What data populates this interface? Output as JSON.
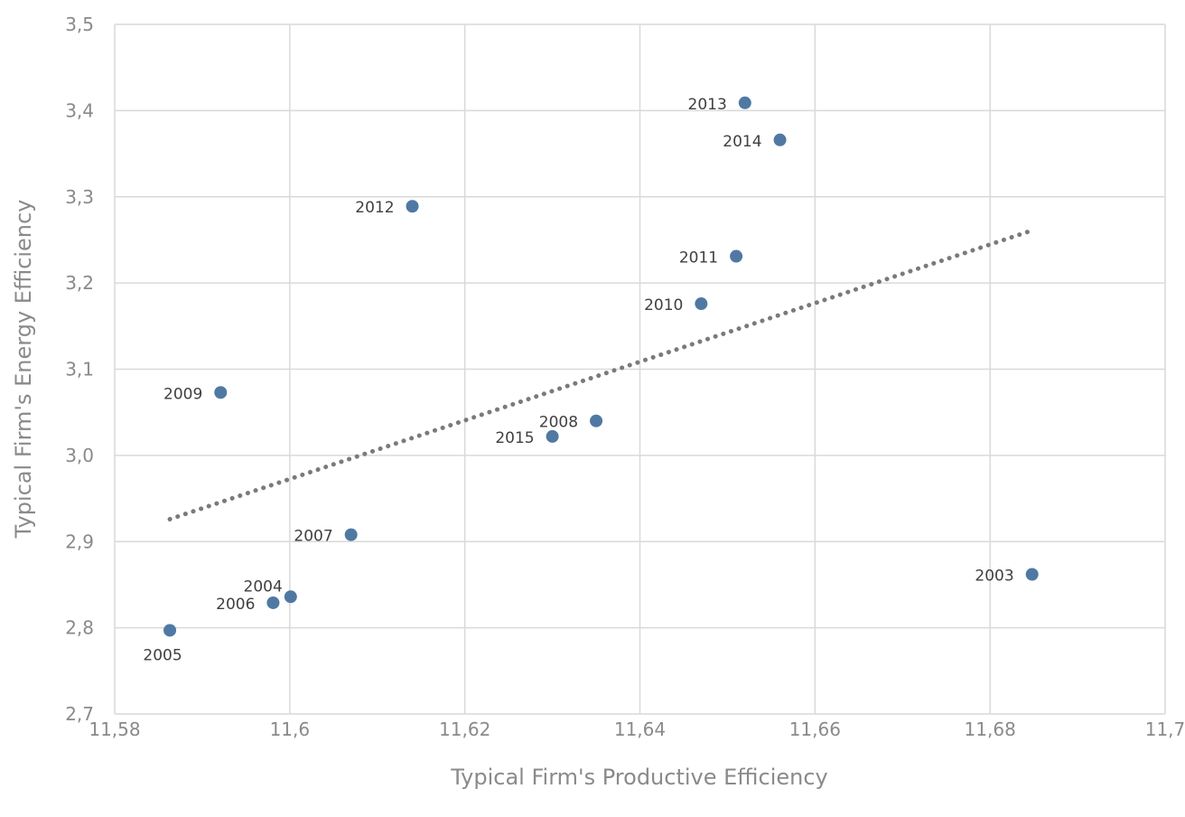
{
  "chart_data": {
    "type": "scatter",
    "title": "",
    "xlabel": "Typical Firm's Productive Efficiency",
    "ylabel": "Typical Firm's Energy Efficiency",
    "xlim": [
      11.58,
      11.7
    ],
    "ylim": [
      2.7,
      3.5
    ],
    "x_ticks": [
      11.58,
      11.6,
      11.62,
      11.64,
      11.66,
      11.68,
      11.7
    ],
    "x_tick_labels": [
      "11,58",
      "11,6",
      "11,62",
      "11,64",
      "11,66",
      "11,68",
      "11,7"
    ],
    "y_ticks": [
      2.7,
      2.8,
      2.9,
      3.0,
      3.1,
      3.2,
      3.3,
      3.4,
      3.5
    ],
    "y_tick_labels": [
      "2,7",
      "2,8",
      "2,9",
      "3,0",
      "3,1",
      "3,2",
      "3,3",
      "3,4",
      "3,5"
    ],
    "grid": true,
    "marker_color": "#4f79a3",
    "trendline": {
      "style": "dotted",
      "color": "#7a7a7a",
      "x": [
        11.5863,
        11.6848
      ],
      "y": [
        2.926,
        3.261
      ]
    },
    "points": [
      {
        "label": "2003",
        "x": 11.6848,
        "y": 2.862,
        "label_pos": "left"
      },
      {
        "label": "2004",
        "x": 11.6001,
        "y": 2.836,
        "label_pos": "upper-left"
      },
      {
        "label": "2005",
        "x": 11.5863,
        "y": 2.797,
        "label_pos": "below"
      },
      {
        "label": "2006",
        "x": 11.5981,
        "y": 2.829,
        "label_pos": "left"
      },
      {
        "label": "2007",
        "x": 11.607,
        "y": 2.908,
        "label_pos": "left"
      },
      {
        "label": "2008",
        "x": 11.635,
        "y": 3.04,
        "label_pos": "left"
      },
      {
        "label": "2009",
        "x": 11.5921,
        "y": 3.073,
        "label_pos": "left"
      },
      {
        "label": "2010",
        "x": 11.647,
        "y": 3.176,
        "label_pos": "left"
      },
      {
        "label": "2011",
        "x": 11.651,
        "y": 3.231,
        "label_pos": "left"
      },
      {
        "label": "2012",
        "x": 11.614,
        "y": 3.289,
        "label_pos": "left"
      },
      {
        "label": "2013",
        "x": 11.652,
        "y": 3.409,
        "label_pos": "left"
      },
      {
        "label": "2014",
        "x": 11.656,
        "y": 3.366,
        "label_pos": "left"
      },
      {
        "label": "2015",
        "x": 11.63,
        "y": 3.022,
        "label_pos": "left"
      }
    ]
  }
}
